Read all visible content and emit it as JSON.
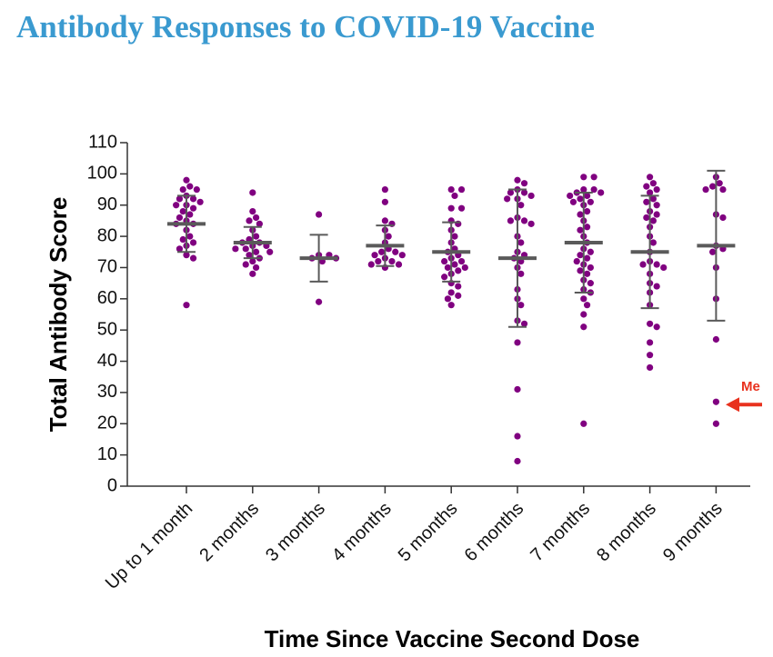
{
  "chart_data": {
    "type": "strip",
    "title": "Antibody Responses to COVID-19 Vaccine",
    "x_label": "Time Since Vaccine Second Dose",
    "y_label": "Total  Antibody Score",
    "categories": [
      "Up to 1 month",
      "2 months",
      "3 months",
      "4 months",
      "5 months",
      "6 months",
      "7 months",
      "8 months",
      "9 months"
    ],
    "points": [
      [
        98,
        96,
        95,
        95,
        93,
        92,
        92,
        91,
        90,
        90,
        89,
        88,
        87,
        86,
        85,
        84,
        84,
        82,
        80,
        79,
        78,
        77,
        76,
        74,
        73,
        58
      ],
      [
        94,
        88,
        86,
        85,
        84,
        82,
        80,
        79,
        78,
        78,
        77,
        77,
        76,
        76,
        75,
        75,
        74,
        73,
        72,
        71,
        70,
        68
      ],
      [
        87,
        74,
        74,
        73,
        73,
        72,
        59
      ],
      [
        95,
        91,
        85,
        84,
        82,
        80,
        78,
        76,
        75,
        75,
        74,
        74,
        73,
        72,
        72,
        71,
        71,
        70
      ],
      [
        95,
        95,
        93,
        89,
        89,
        85,
        84,
        82,
        80,
        78,
        76,
        75,
        74,
        73,
        72,
        72,
        71,
        70,
        70,
        69,
        68,
        67,
        65,
        64,
        62,
        61,
        60,
        58
      ],
      [
        98,
        97,
        95,
        94,
        94,
        93,
        92,
        92,
        90,
        86,
        85,
        85,
        84,
        80,
        78,
        75,
        74,
        73,
        72,
        70,
        68,
        63,
        60,
        58,
        53,
        52,
        46,
        31,
        16,
        8
      ],
      [
        99,
        99,
        95,
        95,
        94,
        94,
        93,
        93,
        92,
        91,
        91,
        90,
        88,
        87,
        85,
        83,
        82,
        80,
        78,
        76,
        75,
        74,
        73,
        72,
        71,
        70,
        69,
        68,
        66,
        65,
        63,
        62,
        60,
        58,
        55,
        51,
        20
      ],
      [
        99,
        97,
        96,
        95,
        94,
        92,
        91,
        90,
        88,
        87,
        86,
        85,
        83,
        80,
        78,
        75,
        72,
        71,
        71,
        70,
        68,
        65,
        64,
        62,
        58,
        52,
        51,
        46,
        42,
        38
      ],
      [
        99,
        97,
        96,
        95,
        95,
        87,
        86,
        77,
        76,
        75,
        70,
        60,
        47,
        27,
        20
      ]
    ],
    "means": [
      84,
      78,
      73,
      77,
      75,
      73,
      78,
      75,
      77
    ],
    "errors": [
      9,
      5,
      7.5,
      6.5,
      9.5,
      22,
      16,
      18,
      24
    ],
    "point_color": "#800080",
    "mean_color": "#5a5a5a",
    "ylim": [
      0,
      110
    ],
    "yticks": [
      0,
      10,
      20,
      30,
      40,
      50,
      60,
      70,
      80,
      90,
      100,
      110
    ],
    "annotation": {
      "text": "Me",
      "color": "#e8321e"
    }
  }
}
